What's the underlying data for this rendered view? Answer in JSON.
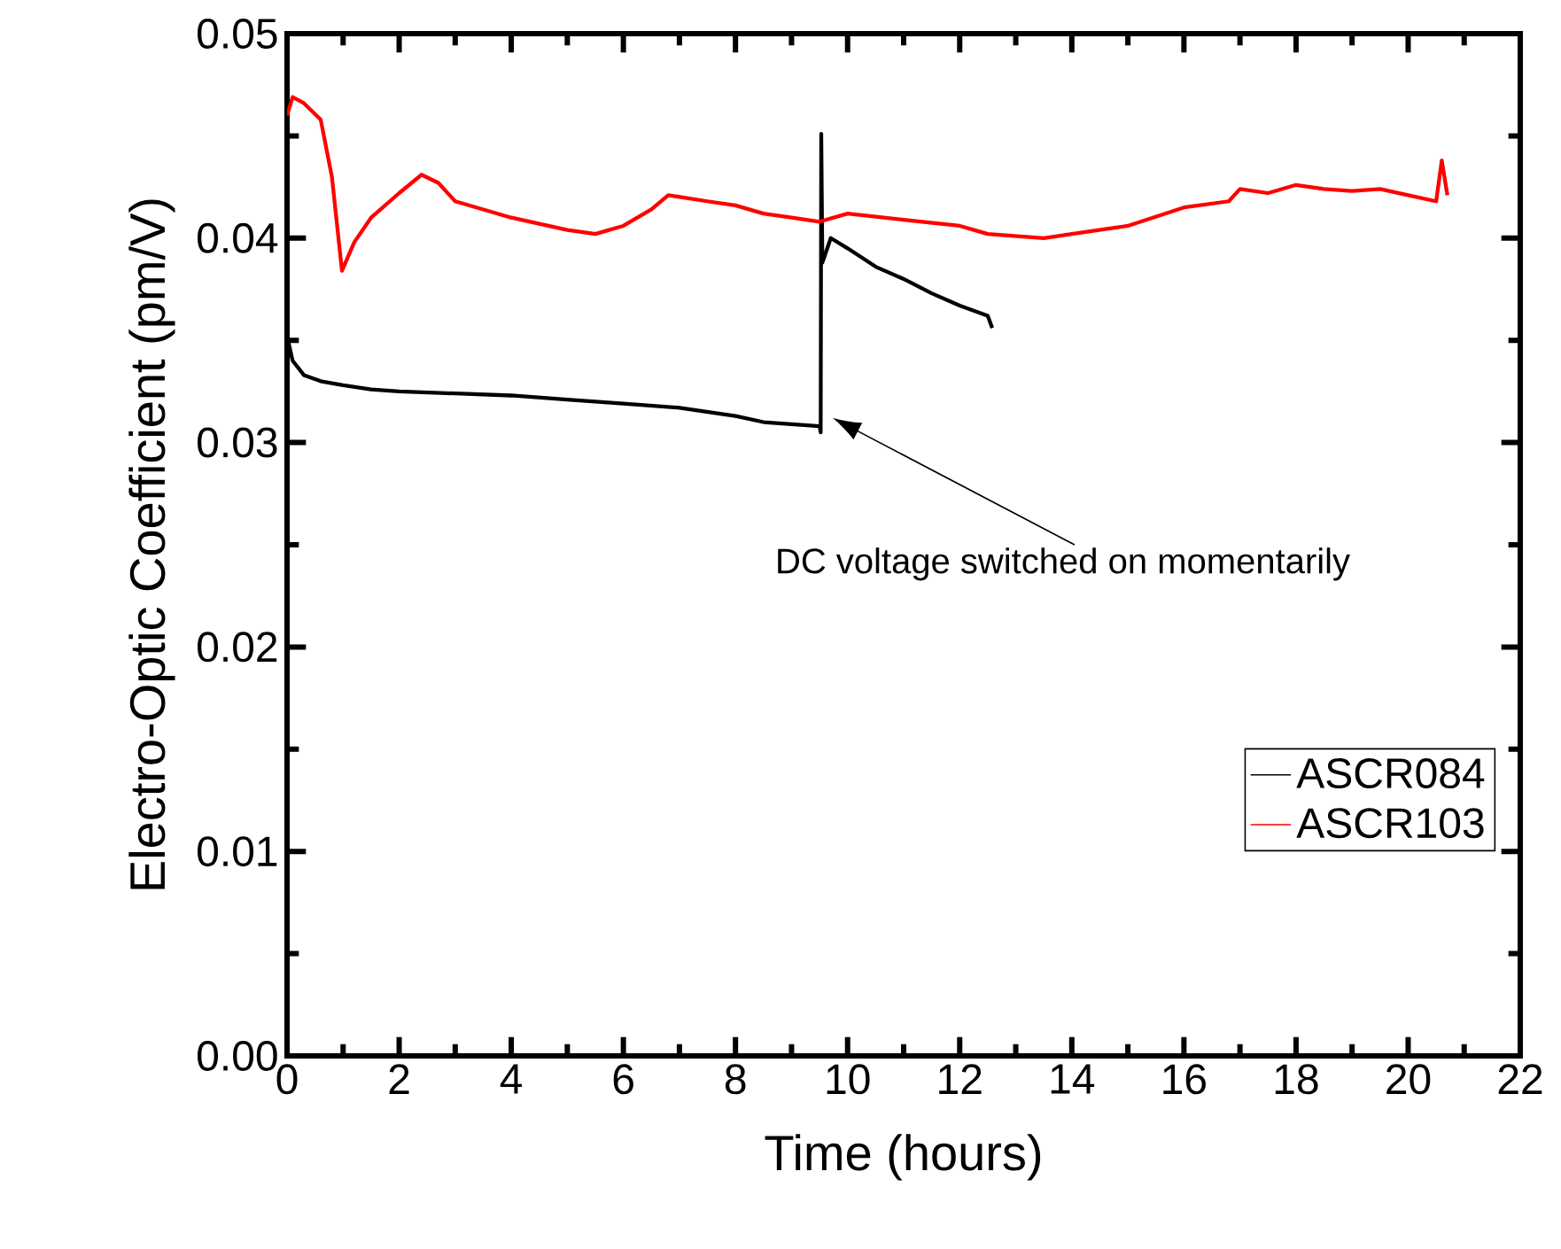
{
  "chart_data": {
    "type": "line",
    "xlabel": "Time (hours)",
    "ylabel": "Electro-Optic Coefficient (pm/V)",
    "xlim": [
      0,
      22
    ],
    "ylim": [
      0,
      0.05
    ],
    "xticks": [
      0,
      2,
      4,
      6,
      8,
      10,
      12,
      14,
      16,
      18,
      20,
      22
    ],
    "yticks": [
      {
        "value": 0,
        "label": "0.00"
      },
      {
        "value": 0.01,
        "label": "0.01"
      },
      {
        "value": 0.02,
        "label": "0.02"
      },
      {
        "value": 0.03,
        "label": "0.03"
      },
      {
        "value": 0.04,
        "label": "0.04"
      },
      {
        "value": 0.05,
        "label": "0.05"
      }
    ],
    "legend": "bottom right",
    "grid": false,
    "marker": "none",
    "line_style": "solid",
    "annotations": [
      "DC voltage switched on momentarily"
    ],
    "series": [
      {
        "name": "ASCR084",
        "color": "#000000",
        "x": [
          0,
          0.1,
          0.3,
          0.6,
          1,
          1.5,
          2,
          3,
          4,
          5,
          6,
          7,
          8,
          8.5,
          9,
          9.5,
          9.52,
          9.53,
          9.55,
          9.7,
          10,
          10.5,
          11,
          11.5,
          12,
          12.5,
          12.58
        ],
        "values": [
          0.0352,
          0.034,
          0.0333,
          0.033,
          0.0328,
          0.0326,
          0.0325,
          0.0324,
          0.0323,
          0.0321,
          0.0319,
          0.0317,
          0.0313,
          0.031,
          0.0309,
          0.0308,
          0.0305,
          0.0451,
          0.0388,
          0.04,
          0.0395,
          0.0386,
          0.038,
          0.0373,
          0.0367,
          0.0362,
          0.0356
        ]
      },
      {
        "name": "ASCR103",
        "color": "#ff0000",
        "x": [
          0,
          0.1,
          0.3,
          0.6,
          0.8,
          0.98,
          1.2,
          1.5,
          2,
          2.4,
          2.7,
          3,
          3.5,
          4,
          4.5,
          5,
          5.5,
          6,
          6.5,
          6.8,
          7.5,
          8,
          8.5,
          9,
          9.5,
          10,
          11,
          12,
          12.5,
          13.5,
          14,
          15,
          16,
          16.8,
          17,
          17.5,
          18,
          18.5,
          19,
          19.5,
          20,
          20.5,
          20.6,
          20.7
        ],
        "values": [
          0.046,
          0.0469,
          0.0466,
          0.0458,
          0.043,
          0.0384,
          0.0398,
          0.041,
          0.0422,
          0.0431,
          0.0427,
          0.0418,
          0.0414,
          0.041,
          0.0407,
          0.0404,
          0.0402,
          0.0406,
          0.0414,
          0.0421,
          0.0418,
          0.0416,
          0.0412,
          0.041,
          0.0408,
          0.0412,
          0.0409,
          0.0406,
          0.0402,
          0.04,
          0.0402,
          0.0406,
          0.0415,
          0.0418,
          0.0424,
          0.0422,
          0.0426,
          0.0424,
          0.0423,
          0.0424,
          0.0421,
          0.0418,
          0.0438,
          0.0421
        ]
      }
    ]
  }
}
